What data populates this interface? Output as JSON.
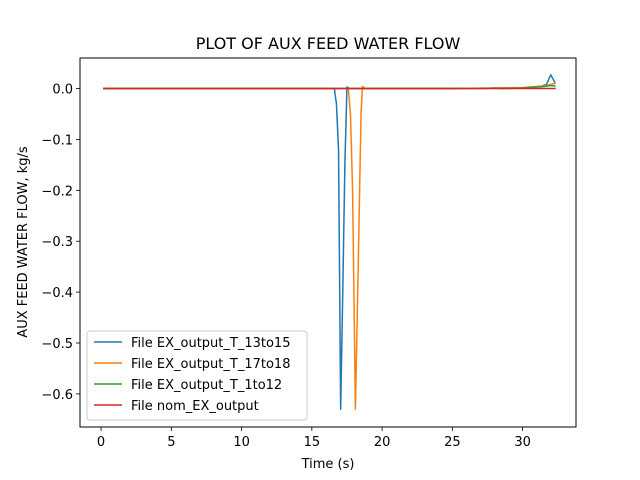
{
  "chart_data": {
    "type": "line",
    "title": "PLOT OF AUX FEED WATER FLOW",
    "xlabel": "Time (s)",
    "ylabel": "AUX FEED WATER FLOW, kg/s",
    "xlim": [
      -1.5,
      33.8
    ],
    "ylim": [
      -0.665,
      0.06
    ],
    "x_ticks": [
      0,
      5,
      10,
      15,
      20,
      25,
      30
    ],
    "x_tick_labels": [
      "0",
      "5",
      "10",
      "15",
      "20",
      "25",
      "30"
    ],
    "y_ticks": [
      0.0,
      -0.1,
      -0.2,
      -0.3,
      -0.4,
      -0.5,
      -0.6
    ],
    "y_tick_labels": [
      "0.0",
      "−0.1",
      "−0.2",
      "−0.3",
      "−0.4",
      "−0.5",
      "−0.6"
    ],
    "grid": false,
    "legend_position": "lower-left",
    "series": [
      {
        "name": "File EX_output_T_13to15",
        "color": "#1f77b4",
        "points": [
          [
            0.2,
            0.0
          ],
          [
            10,
            0.0
          ],
          [
            16.6,
            0.0
          ],
          [
            16.75,
            -0.03
          ],
          [
            16.9,
            -0.12
          ],
          [
            17.05,
            -0.63
          ],
          [
            17.2,
            -0.4
          ],
          [
            17.35,
            -0.15
          ],
          [
            17.5,
            0.003
          ],
          [
            17.7,
            0.0
          ],
          [
            25,
            0.0
          ],
          [
            30,
            0.001
          ],
          [
            30.8,
            0.003
          ],
          [
            31.3,
            0.004
          ],
          [
            31.7,
            0.008
          ],
          [
            32.0,
            0.027
          ],
          [
            32.3,
            0.012
          ]
        ]
      },
      {
        "name": "File EX_output_T_17to18",
        "color": "#ff7f0e",
        "points": [
          [
            0.2,
            0.0
          ],
          [
            10,
            0.0
          ],
          [
            17.6,
            0.0
          ],
          [
            17.75,
            -0.05
          ],
          [
            17.9,
            -0.2
          ],
          [
            18.1,
            -0.63
          ],
          [
            18.3,
            -0.35
          ],
          [
            18.5,
            -0.05
          ],
          [
            18.6,
            0.004
          ],
          [
            18.8,
            0.0
          ],
          [
            25,
            0.0
          ],
          [
            30,
            0.002
          ],
          [
            31.0,
            0.004
          ],
          [
            31.5,
            0.005
          ],
          [
            32.0,
            0.008
          ],
          [
            32.3,
            0.01
          ]
        ]
      },
      {
        "name": "File EX_output_T_1to12",
        "color": "#2ca02c",
        "points": [
          [
            0.2,
            0.0
          ],
          [
            10,
            0.0
          ],
          [
            20,
            0.0
          ],
          [
            27.5,
            0.0
          ],
          [
            28.0,
            0.001
          ],
          [
            28.5,
            0.0
          ],
          [
            30,
            0.001
          ],
          [
            31.0,
            0.003
          ],
          [
            31.5,
            0.004
          ],
          [
            32.0,
            0.006
          ],
          [
            32.3,
            0.005
          ]
        ]
      },
      {
        "name": "File nom_EX_output",
        "color": "#d62728",
        "points": [
          [
            0.2,
            0.0
          ],
          [
            10,
            0.0
          ],
          [
            20,
            0.0
          ],
          [
            30,
            0.0
          ],
          [
            32.3,
            0.0
          ]
        ]
      }
    ]
  }
}
